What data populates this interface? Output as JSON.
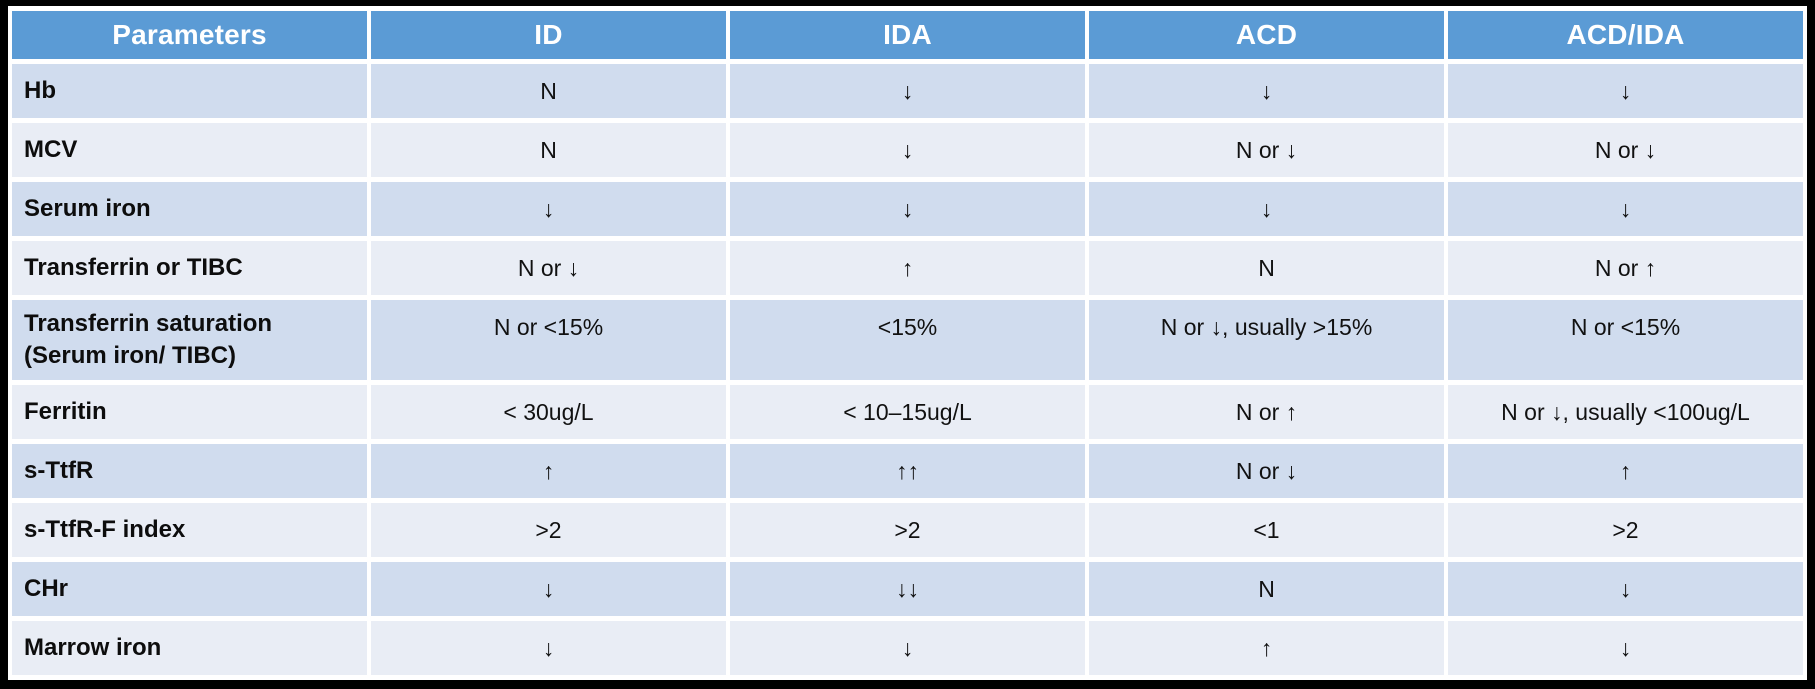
{
  "colors": {
    "header_bg": "#5B9BD5",
    "header_text": "#FFFFFF",
    "row_band_dark": "#D0DCEE",
    "row_band_light": "#E9EDF5",
    "frame": "#000000",
    "body_text": "#111111"
  },
  "chart_data": {
    "type": "table",
    "title": "",
    "columns": [
      "Parameters",
      "ID",
      "IDA",
      "ACD",
      "ACD/IDA"
    ],
    "rows": [
      [
        "Hb",
        "N",
        "↓",
        "↓",
        "↓"
      ],
      [
        "MCV",
        "N",
        "↓",
        "N or ↓",
        "N or ↓"
      ],
      [
        "Serum iron",
        "↓",
        "↓",
        "↓",
        "↓"
      ],
      [
        "Transferrin or TIBC",
        "N or ↓",
        "↑",
        "N",
        "N or ↑"
      ],
      [
        "Transferrin saturation\n(Serum iron/ TIBC)",
        "N or <15%",
        "<15%",
        "N or ↓, usually >15%",
        "N or <15%"
      ],
      [
        "Ferritin",
        "< 30ug/L",
        "< 10–15ug/L",
        "N or ↑",
        "N or ↓, usually <100ug/L"
      ],
      [
        "s-TtfR",
        "↑",
        "↑↑",
        "N or ↓",
        "↑"
      ],
      [
        "s-TtfR-F index",
        ">2",
        ">2",
        "<1",
        ">2"
      ],
      [
        "CHr",
        "↓",
        "↓↓",
        "N",
        "↓"
      ],
      [
        "Marrow iron",
        "↓",
        "↓",
        "↑",
        "↓"
      ]
    ]
  }
}
